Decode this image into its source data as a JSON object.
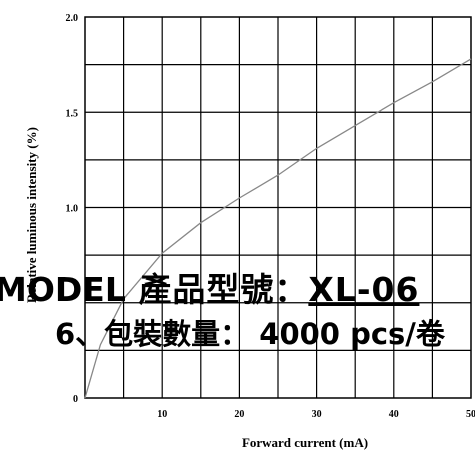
{
  "chart_data": {
    "type": "line",
    "title": "",
    "xlabel": "Forward current (mA)",
    "ylabel": "Relative luminous intensity (%)",
    "xlim": [
      0,
      50
    ],
    "ylim": [
      0,
      2.0
    ],
    "grid": true,
    "x_ticks": [
      "10",
      "20",
      "30",
      "40",
      "50"
    ],
    "y_ticks": [
      "0",
      "1.0",
      "1.5",
      "2.0"
    ],
    "series": [
      {
        "color": "#888888",
        "x": [
          0,
          2,
          5,
          10,
          15,
          20,
          25,
          30,
          35,
          40,
          45,
          50
        ],
        "y": [
          0,
          0.28,
          0.52,
          0.76,
          0.92,
          1.05,
          1.17,
          1.31,
          1.43,
          1.55,
          1.66,
          1.78
        ]
      }
    ]
  },
  "overlay": {
    "model_en": "MODEL",
    "model_cn": "產品型號：",
    "model_no": "XL-06",
    "packing": "6、包裝數量： 4000 pcs/卷"
  }
}
